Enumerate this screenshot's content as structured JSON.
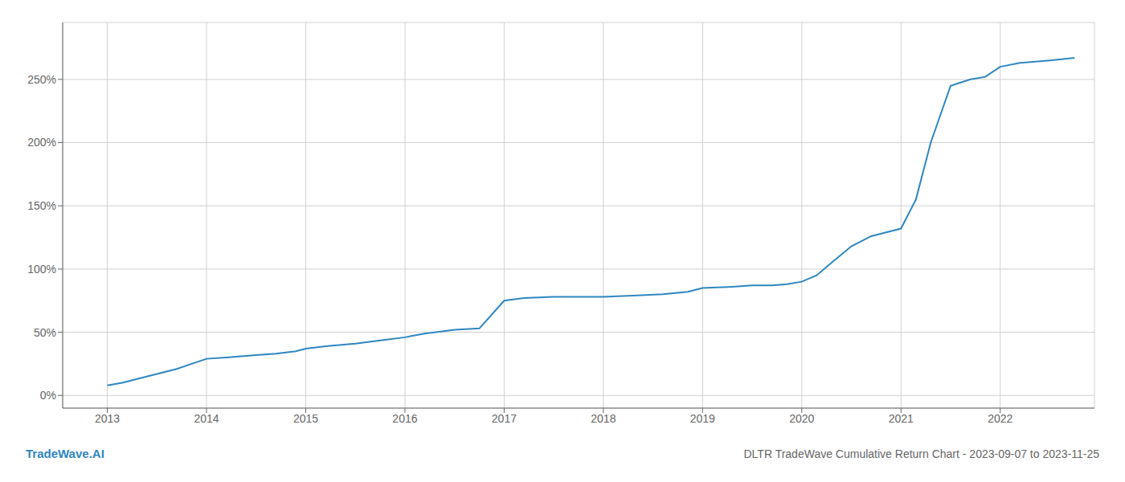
{
  "chart_data": {
    "type": "line",
    "title": "DLTR TradeWave Cumulative Return Chart - 2023-09-07 to 2023-11-25",
    "annotations": [
      "TradeWave.AI"
    ],
    "color": "#2e86c1",
    "grid": true,
    "x": [
      2013.0,
      2013.15,
      2013.3,
      2013.5,
      2013.7,
      2013.85,
      2014.0,
      2014.2,
      2014.5,
      2014.7,
      2014.9,
      2015.0,
      2015.2,
      2015.5,
      2015.8,
      2016.0,
      2016.2,
      2016.5,
      2016.75,
      2017.0,
      2017.2,
      2017.5,
      2017.8,
      2018.0,
      2018.3,
      2018.6,
      2018.85,
      2019.0,
      2019.3,
      2019.5,
      2019.7,
      2019.85,
      2020.0,
      2020.15,
      2020.3,
      2020.5,
      2020.7,
      2020.85,
      2021.0,
      2021.15,
      2021.3,
      2021.5,
      2021.7,
      2021.85,
      2022.0,
      2022.2,
      2022.5,
      2022.75
    ],
    "values": [
      8,
      10,
      13,
      17,
      21,
      25,
      29,
      30,
      32,
      33,
      35,
      37,
      39,
      41,
      44,
      46,
      49,
      52,
      53,
      75,
      77,
      78,
      78,
      78,
      79,
      80,
      82,
      85,
      86,
      87,
      87,
      88,
      90,
      95,
      105,
      118,
      126,
      129,
      132,
      155,
      200,
      245,
      250,
      252,
      260,
      263,
      265,
      267
    ],
    "xlim": [
      2012.55,
      2022.95
    ],
    "xticks": [
      2013,
      2014,
      2015,
      2016,
      2017,
      2018,
      2019,
      2020,
      2021,
      2022
    ],
    "ylim": [
      -10,
      295
    ],
    "yticks": [
      {
        "value": 0,
        "label": "0%"
      },
      {
        "value": 50,
        "label": "50%"
      },
      {
        "value": 100,
        "label": "100%"
      },
      {
        "value": 150,
        "label": "150%"
      },
      {
        "value": 200,
        "label": "200%"
      },
      {
        "value": 250,
        "label": "250%"
      }
    ]
  }
}
